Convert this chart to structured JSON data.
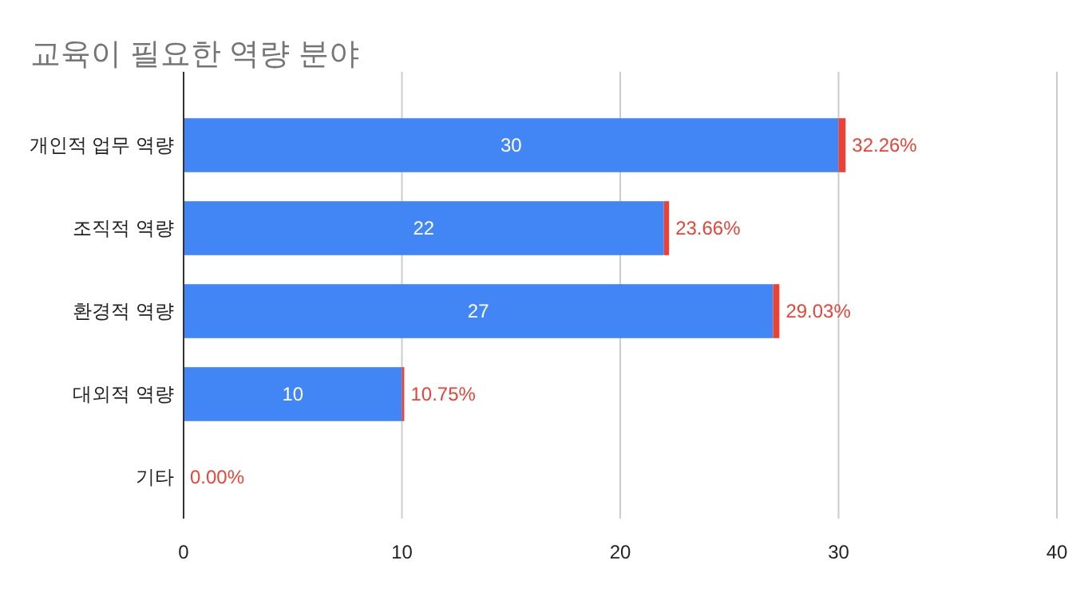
{
  "chart_data": {
    "type": "bar",
    "orientation": "horizontal",
    "stacked": true,
    "title": "교육이 필요한 역량 분야",
    "categories": [
      "개인적 업무 역량",
      "조직적 역량",
      "환경적 역량",
      "대외적 역량",
      "기타"
    ],
    "series": [
      {
        "color": "#4285f4",
        "values": [
          30,
          22,
          27,
          10,
          0
        ],
        "value_labels": [
          "30",
          "22",
          "27",
          "10",
          null
        ]
      },
      {
        "color": "#ea4335",
        "values": [
          0.3226,
          0.2366,
          0.2903,
          0.1075,
          0
        ],
        "value_labels": [
          "32.26%",
          "23.66%",
          "29.03%",
          "10.75%",
          "0.00%"
        ]
      }
    ],
    "xlim": [
      0,
      40
    ],
    "xticks": [
      0,
      10,
      20,
      30,
      40
    ],
    "grid": "x"
  }
}
